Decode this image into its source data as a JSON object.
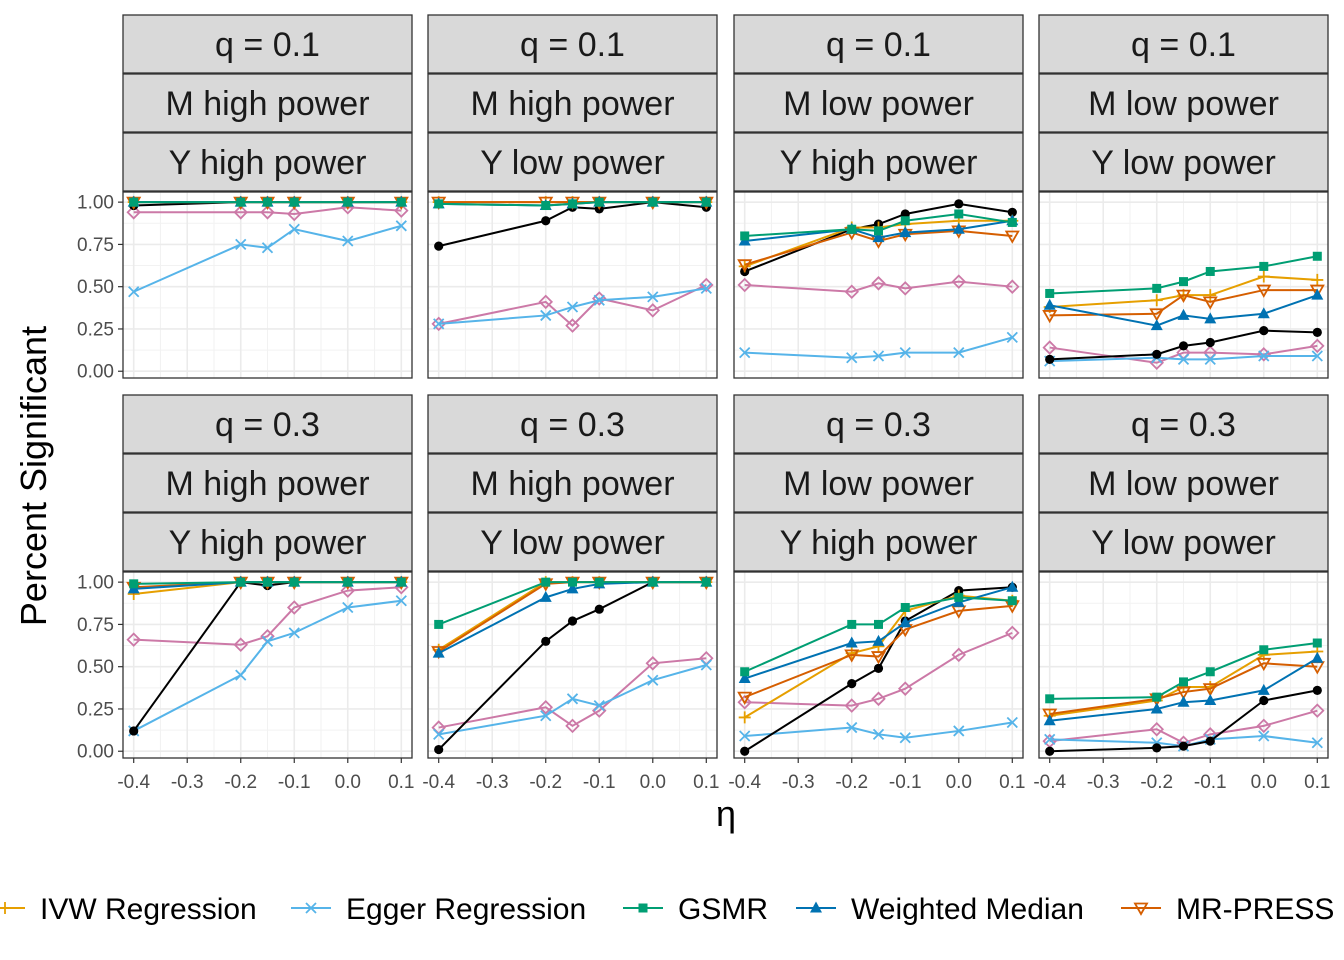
{
  "chart_data": {
    "type": "line",
    "ylabel": "Percent Significant",
    "xlabel": "η",
    "x": [
      -0.4,
      -0.2,
      -0.15,
      -0.1,
      0.0,
      0.1
    ],
    "x_ticks": [
      "-0.4",
      "-0.3",
      "-0.2",
      "-0.1",
      "0.0",
      "0.1"
    ],
    "y_ticks": [
      "0.00",
      "0.25",
      "0.50",
      "0.75",
      "1.00"
    ],
    "xlim": [
      -0.42,
      0.12
    ],
    "ylim": [
      -0.04,
      1.06
    ],
    "grid": true,
    "legend_position": "bottom",
    "series_styles": [
      {
        "key": "black",
        "color": "#000000",
        "marker": "circle",
        "legend": ""
      },
      {
        "key": "ivw",
        "color": "#E69F00",
        "marker": "plus",
        "legend": "IVW Regression"
      },
      {
        "key": "egger",
        "color": "#56B4E9",
        "marker": "cross",
        "legend": "Egger Regression"
      },
      {
        "key": "gsmr",
        "color": "#009E73",
        "marker": "square",
        "legend": "GSMR"
      },
      {
        "key": "wmed",
        "color": "#0072B2",
        "marker": "triangle",
        "legend": "Weighted Median"
      },
      {
        "key": "press",
        "color": "#D55E00",
        "marker": "triangle-down",
        "legend": "MR-PRESS"
      },
      {
        "key": "pink",
        "color": "#CC79A7",
        "marker": "diamond",
        "legend": ""
      }
    ],
    "panels": [
      {
        "strips": [
          "q = 0.1",
          "M high power",
          "Y high power"
        ],
        "series": {
          "black": [
            0.98,
            1.0,
            1.0,
            1.0,
            1.0,
            1.0
          ],
          "ivw": [
            1.0,
            1.0,
            1.0,
            1.0,
            1.0,
            1.0
          ],
          "egger": [
            0.47,
            0.75,
            0.73,
            0.84,
            0.77,
            0.86
          ],
          "gsmr": [
            1.0,
            1.0,
            1.0,
            1.0,
            1.0,
            1.0
          ],
          "wmed": [
            1.0,
            1.0,
            1.0,
            1.0,
            1.0,
            1.0
          ],
          "press": [
            1.0,
            1.0,
            1.0,
            1.0,
            1.0,
            1.0
          ],
          "pink": [
            0.94,
            0.94,
            0.94,
            0.93,
            0.97,
            0.95
          ]
        }
      },
      {
        "strips": [
          "q = 0.1",
          "M high power",
          "Y low power"
        ],
        "series": {
          "black": [
            0.74,
            0.89,
            0.97,
            0.96,
            1.0,
            0.97
          ],
          "ivw": [
            1.0,
            1.0,
            1.0,
            1.0,
            1.0,
            1.0
          ],
          "egger": [
            0.28,
            0.33,
            0.38,
            0.42,
            0.44,
            0.49
          ],
          "gsmr": [
            0.99,
            0.98,
            0.99,
            1.0,
            1.0,
            1.0
          ],
          "wmed": [
            0.99,
            0.98,
            0.99,
            1.0,
            1.0,
            1.0
          ],
          "press": [
            1.0,
            1.0,
            1.0,
            1.0,
            1.0,
            1.0
          ],
          "pink": [
            0.28,
            0.41,
            0.27,
            0.43,
            0.36,
            0.51
          ]
        }
      },
      {
        "strips": [
          "q = 0.1",
          "M low power",
          "Y high power"
        ],
        "series": {
          "black": [
            0.59,
            0.84,
            0.87,
            0.93,
            0.99,
            0.94
          ],
          "ivw": [
            0.62,
            0.85,
            0.85,
            0.87,
            0.89,
            0.89
          ],
          "egger": [
            0.11,
            0.08,
            0.09,
            0.11,
            0.11,
            0.2
          ],
          "gsmr": [
            0.8,
            0.84,
            0.83,
            0.89,
            0.93,
            0.88
          ],
          "wmed": [
            0.77,
            0.84,
            0.79,
            0.82,
            0.84,
            0.89
          ],
          "press": [
            0.63,
            0.82,
            0.77,
            0.81,
            0.83,
            0.8
          ],
          "pink": [
            0.51,
            0.47,
            0.52,
            0.49,
            0.53,
            0.5
          ]
        }
      },
      {
        "strips": [
          "q = 0.1",
          "M low power",
          "Y low power"
        ],
        "series": {
          "black": [
            0.07,
            0.1,
            0.15,
            0.17,
            0.24,
            0.23
          ],
          "ivw": [
            0.38,
            0.42,
            0.45,
            0.45,
            0.56,
            0.54
          ],
          "egger": [
            0.06,
            0.08,
            0.07,
            0.07,
            0.09,
            0.09
          ],
          "gsmr": [
            0.46,
            0.49,
            0.53,
            0.59,
            0.62,
            0.68
          ],
          "wmed": [
            0.39,
            0.27,
            0.33,
            0.31,
            0.34,
            0.45
          ],
          "press": [
            0.33,
            0.34,
            0.45,
            0.41,
            0.48,
            0.48
          ],
          "pink": [
            0.14,
            0.05,
            0.11,
            0.11,
            0.1,
            0.15
          ]
        }
      },
      {
        "strips": [
          "q = 0.3",
          "M high power",
          "Y high power"
        ],
        "series": {
          "black": [
            0.12,
            1.0,
            0.98,
            1.0,
            1.0,
            1.0
          ],
          "ivw": [
            0.93,
            1.0,
            1.0,
            1.0,
            1.0,
            1.0
          ],
          "egger": [
            0.12,
            0.45,
            0.65,
            0.7,
            0.85,
            0.89
          ],
          "gsmr": [
            0.99,
            1.0,
            1.0,
            1.0,
            1.0,
            1.0
          ],
          "wmed": [
            0.96,
            1.0,
            1.0,
            1.0,
            1.0,
            1.0
          ],
          "press": [
            0.97,
            1.0,
            1.0,
            1.0,
            1.0,
            1.0
          ],
          "pink": [
            0.66,
            0.63,
            0.68,
            0.85,
            0.95,
            0.97
          ]
        }
      },
      {
        "strips": [
          "q = 0.3",
          "M high power",
          "Y low power"
        ],
        "series": {
          "black": [
            0.01,
            0.65,
            0.77,
            0.84,
            1.0,
            1.0
          ],
          "ivw": [
            0.6,
            1.0,
            1.0,
            1.0,
            1.0,
            1.0
          ],
          "egger": [
            0.1,
            0.21,
            0.31,
            0.27,
            0.42,
            0.51
          ],
          "gsmr": [
            0.75,
            1.0,
            1.0,
            1.0,
            1.0,
            1.0
          ],
          "wmed": [
            0.58,
            0.91,
            0.96,
            0.99,
            1.0,
            1.0
          ],
          "press": [
            0.59,
            0.99,
            1.0,
            1.0,
            1.0,
            1.0
          ],
          "pink": [
            0.14,
            0.26,
            0.15,
            0.24,
            0.52,
            0.55
          ]
        }
      },
      {
        "strips": [
          "q = 0.3",
          "M low power",
          "Y high power"
        ],
        "series": {
          "black": [
            0.0,
            0.4,
            0.49,
            0.77,
            0.95,
            0.97
          ],
          "ivw": [
            0.2,
            0.58,
            0.62,
            0.83,
            0.92,
            0.89
          ],
          "egger": [
            0.09,
            0.14,
            0.1,
            0.08,
            0.12,
            0.17
          ],
          "gsmr": [
            0.47,
            0.75,
            0.75,
            0.85,
            0.91,
            0.89
          ],
          "wmed": [
            0.43,
            0.64,
            0.65,
            0.76,
            0.88,
            0.97
          ],
          "press": [
            0.32,
            0.57,
            0.56,
            0.72,
            0.83,
            0.86
          ],
          "pink": [
            0.29,
            0.27,
            0.31,
            0.37,
            0.57,
            0.7
          ]
        }
      },
      {
        "strips": [
          "q = 0.3",
          "M low power",
          "Y low power"
        ],
        "series": {
          "black": [
            0.0,
            0.02,
            0.03,
            0.06,
            0.3,
            0.36
          ],
          "ivw": [
            0.21,
            0.3,
            0.38,
            0.38,
            0.57,
            0.59
          ],
          "egger": [
            0.07,
            0.05,
            0.03,
            0.07,
            0.09,
            0.05
          ],
          "gsmr": [
            0.31,
            0.32,
            0.41,
            0.47,
            0.6,
            0.64
          ],
          "wmed": [
            0.18,
            0.25,
            0.29,
            0.3,
            0.36,
            0.55
          ],
          "press": [
            0.22,
            0.31,
            0.35,
            0.37,
            0.52,
            0.5
          ],
          "pink": [
            0.06,
            0.13,
            0.05,
            0.1,
            0.15,
            0.24
          ]
        }
      }
    ]
  }
}
